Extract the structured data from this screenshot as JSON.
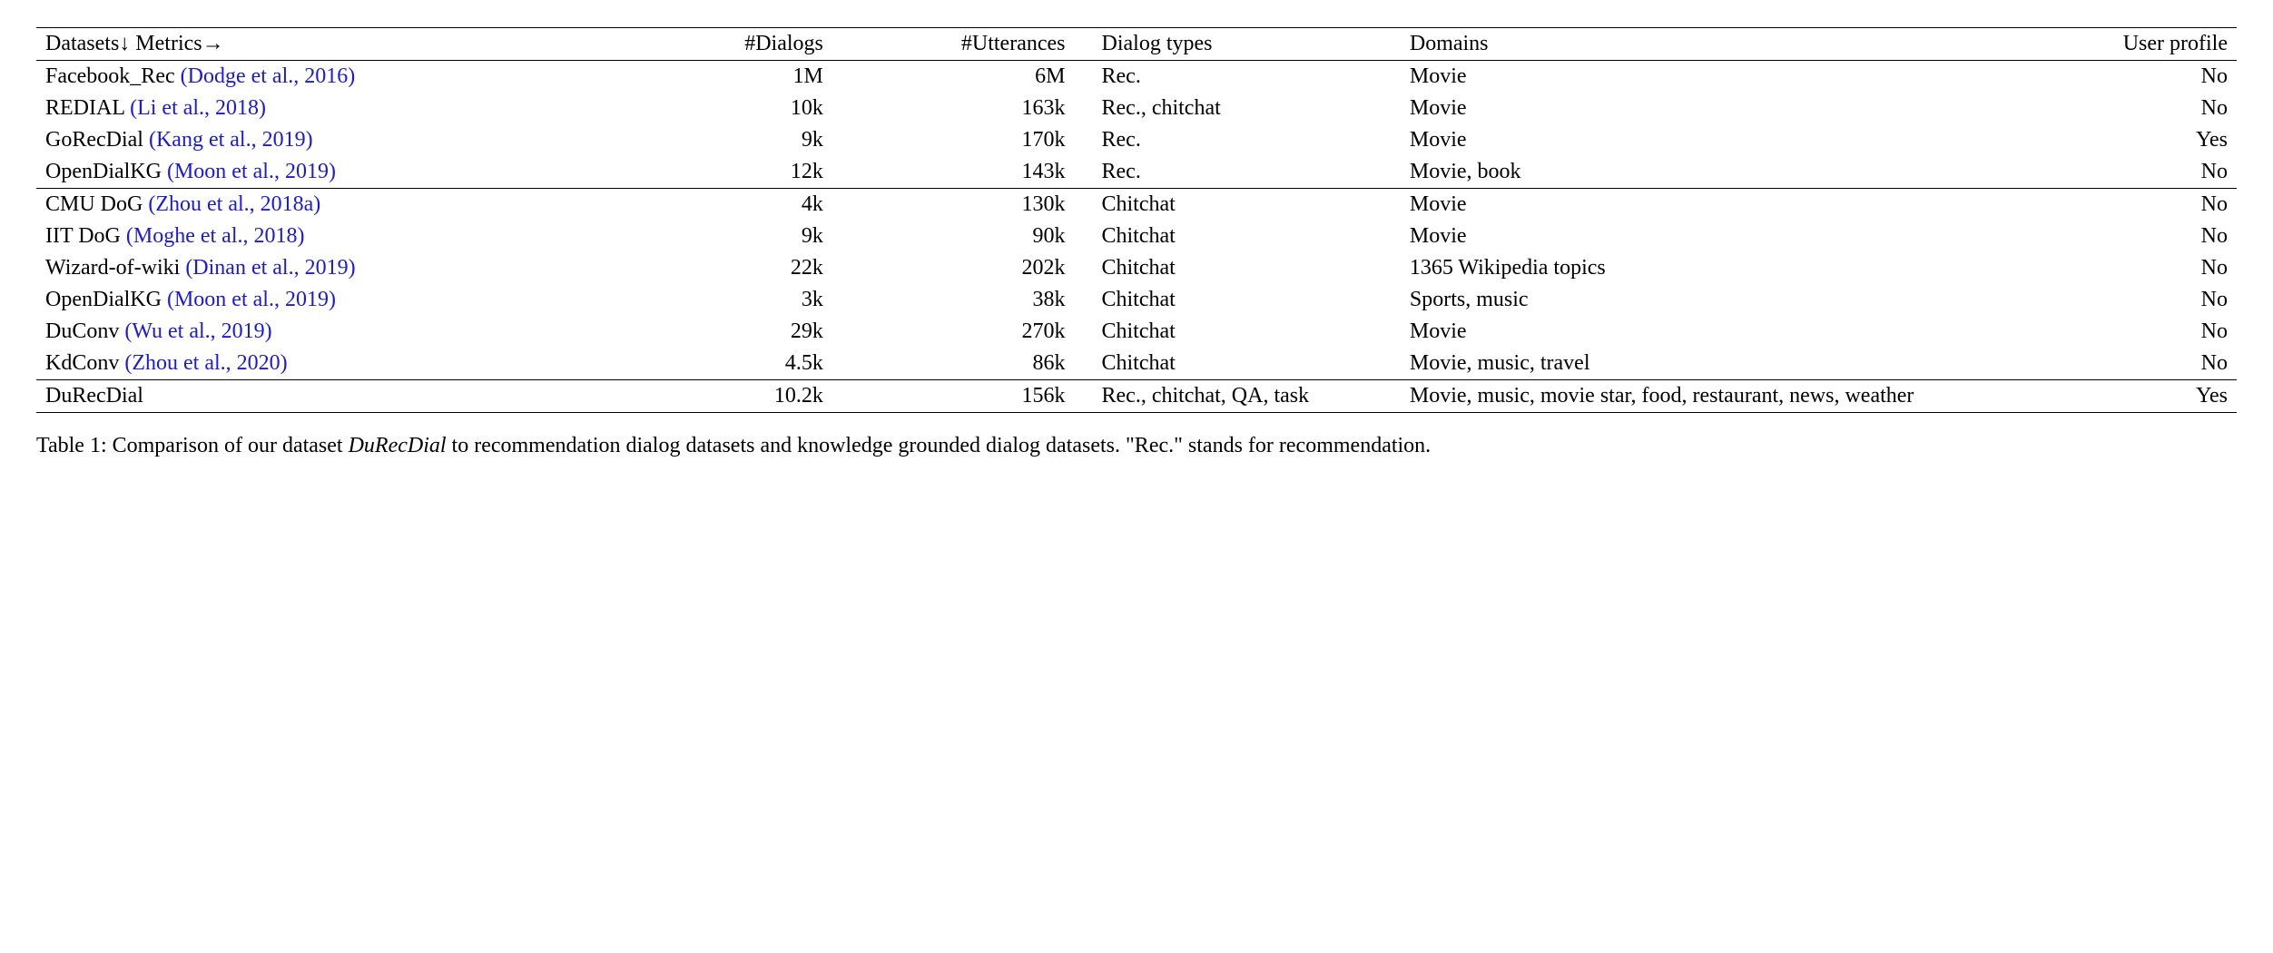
{
  "table": {
    "headers": {
      "datasets": "Datasets↓ Metrics→",
      "dialogs": "#Dialogs",
      "utterances": "#Utterances",
      "types": "Dialog types",
      "domains": "Domains",
      "profile": "User profile"
    },
    "rows": [
      {
        "name": "Facebook_Rec",
        "citation": "(Dodge et al., 2016)",
        "dialogs": "1M",
        "utterances": "6M",
        "types": "Rec.",
        "domains": "Movie",
        "profile": "No",
        "section": 1
      },
      {
        "name": "REDIAL",
        "citation": "(Li et al., 2018)",
        "dialogs": "10k",
        "utterances": "163k",
        "types": "Rec., chitchat",
        "domains": "Movie",
        "profile": "No",
        "section": 1
      },
      {
        "name": "GoRecDial",
        "citation": "(Kang et al., 2019)",
        "dialogs": "9k",
        "utterances": "170k",
        "types": "Rec.",
        "domains": "Movie",
        "profile": "Yes",
        "section": 1
      },
      {
        "name": "OpenDialKG",
        "citation": "(Moon et al., 2019)",
        "dialogs": "12k",
        "utterances": "143k",
        "types": "Rec.",
        "domains": "Movie, book",
        "profile": "No",
        "section": 1
      },
      {
        "name": "CMU DoG",
        "citation": "(Zhou et al., 2018a)",
        "dialogs": "4k",
        "utterances": "130k",
        "types": "Chitchat",
        "domains": "Movie",
        "profile": "No",
        "section": 2
      },
      {
        "name": "IIT DoG",
        "citation": "(Moghe et al., 2018)",
        "dialogs": "9k",
        "utterances": "90k",
        "types": "Chitchat",
        "domains": "Movie",
        "profile": "No",
        "section": 2
      },
      {
        "name": "Wizard-of-wiki",
        "citation": "(Dinan et al., 2019)",
        "dialogs": "22k",
        "utterances": "202k",
        "types": "Chitchat",
        "domains": "1365 Wikipedia topics",
        "profile": "No",
        "section": 2
      },
      {
        "name": "OpenDialKG",
        "citation": "(Moon et al., 2019)",
        "dialogs": "3k",
        "utterances": "38k",
        "types": "Chitchat",
        "domains": "Sports, music",
        "profile": "No",
        "section": 2
      },
      {
        "name": "DuConv",
        "citation": "(Wu et al., 2019)",
        "dialogs": "29k",
        "utterances": "270k",
        "types": "Chitchat",
        "domains": "Movie",
        "profile": "No",
        "section": 2
      },
      {
        "name": "KdConv",
        "citation": "(Zhou et al., 2020)",
        "dialogs": "4.5k",
        "utterances": "86k",
        "types": "Chitchat",
        "domains": "Movie, music, travel",
        "profile": "No",
        "section": 2
      },
      {
        "name": "DuRecDial",
        "citation": "",
        "dialogs": "10.2k",
        "utterances": "156k",
        "types": "Rec., chitchat, QA, task",
        "domains": "Movie, music, movie star, food, restaurant, news, weather",
        "profile": "Yes",
        "section": 3
      }
    ]
  },
  "caption": {
    "prefix": "Table 1: Comparison of our dataset ",
    "dataset_name": "DuRecDial",
    "suffix": " to recommendation dialog datasets and knowledge grounded dialog datasets. \"Rec.\" stands for recommendation."
  },
  "styling": {
    "text_color": "#000000",
    "citation_color": "#1a1adb",
    "background_color": "#ffffff",
    "border_heavy": "1.5px",
    "border_light": "1px",
    "font_family": "Times New Roman",
    "base_fontsize": 24
  }
}
